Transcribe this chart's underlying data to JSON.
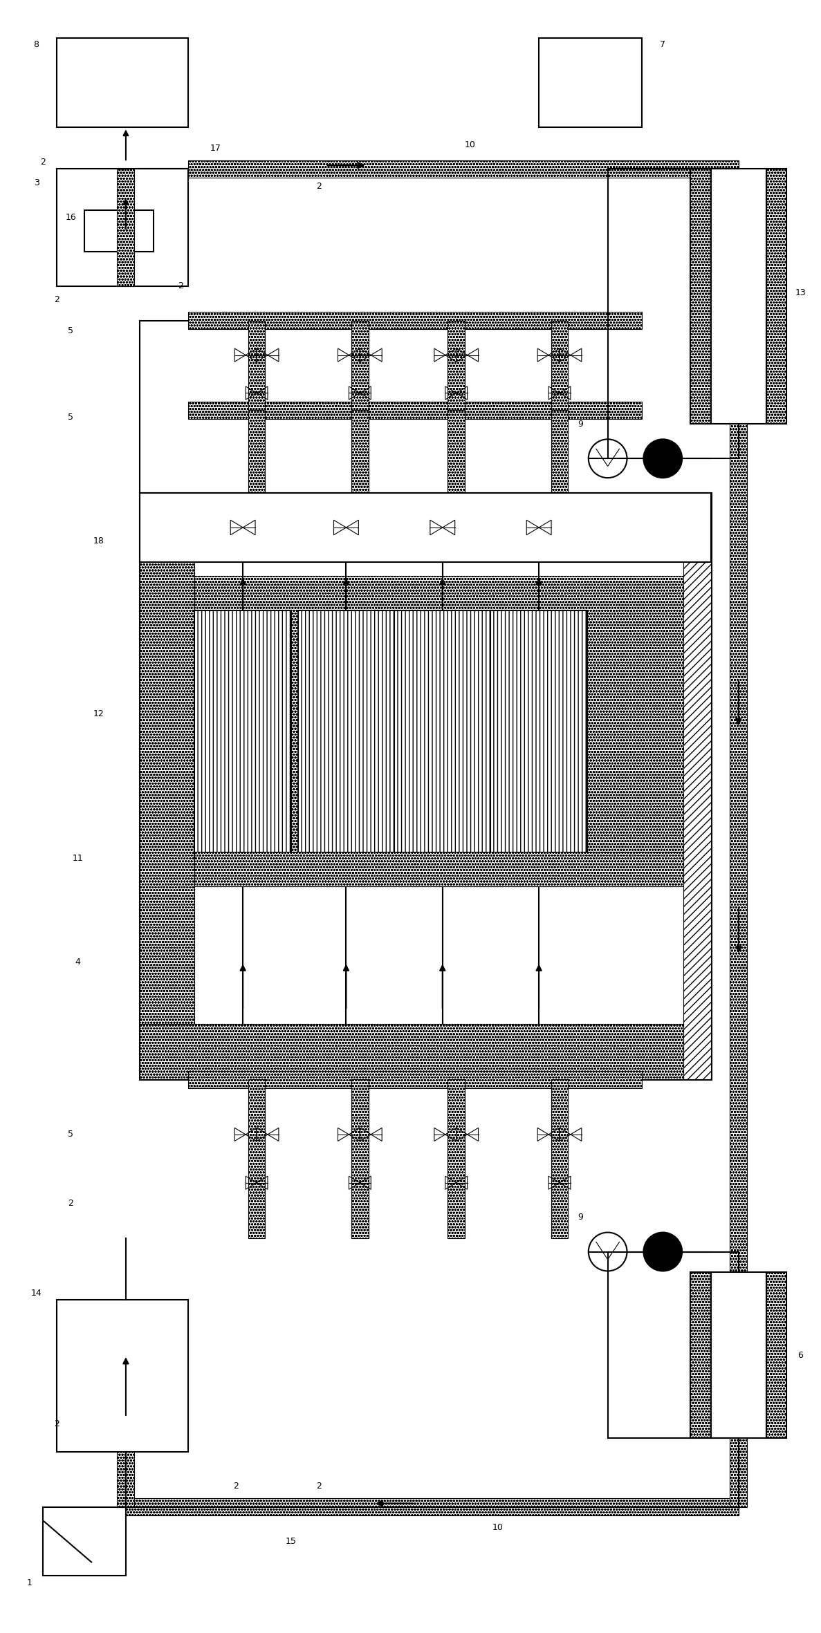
{
  "bg_color": "#ffffff",
  "line_color": "#000000",
  "fig_width": 11.87,
  "fig_height": 23.62,
  "dpi": 100,
  "xlim": [
    0,
    118.7
  ],
  "ylim": [
    0,
    236.2
  ]
}
